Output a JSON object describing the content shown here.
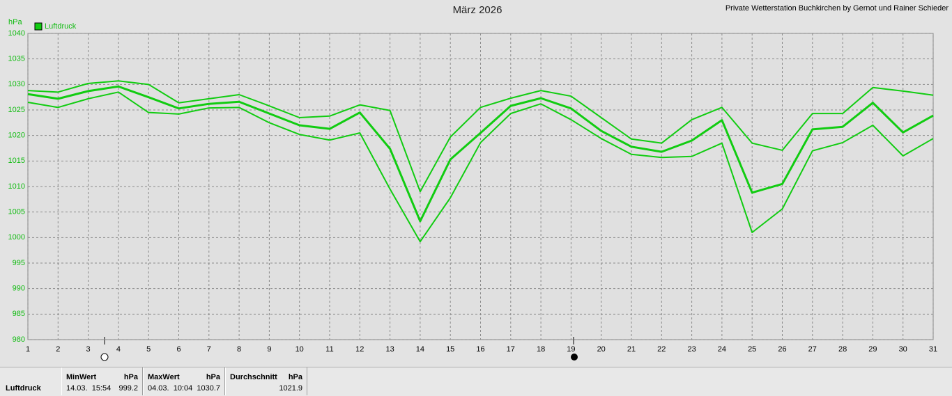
{
  "chart_data": {
    "type": "line",
    "title": "März 2026",
    "subtitle": "Private Wetterstation Buchkirchen by Gernot und Rainer Schieder",
    "y_label": "hPa",
    "x": [
      1,
      2,
      3,
      4,
      5,
      6,
      7,
      8,
      9,
      10,
      11,
      12,
      13,
      14,
      15,
      16,
      17,
      18,
      19,
      20,
      21,
      22,
      23,
      24,
      25,
      26,
      27,
      28,
      29,
      30,
      31
    ],
    "xlim": [
      1,
      31
    ],
    "xticks": [
      1,
      2,
      3,
      4,
      5,
      6,
      7,
      8,
      9,
      10,
      11,
      12,
      13,
      14,
      15,
      16,
      17,
      18,
      19,
      20,
      21,
      22,
      23,
      24,
      25,
      26,
      27,
      28,
      29,
      30,
      31
    ],
    "ylim": [
      980,
      1040
    ],
    "yticks": [
      980,
      985,
      990,
      995,
      1000,
      1005,
      1010,
      1015,
      1020,
      1025,
      1030,
      1035,
      1040
    ],
    "grid": true,
    "legend": "top-left",
    "series": [
      {
        "name": "Luftdruck",
        "color": "#11cc11",
        "width": 3,
        "values": [
          1028.1,
          1027.2,
          1028.7,
          1029.6,
          1027.5,
          1025.3,
          1026.2,
          1026.6,
          1024.3,
          1022.0,
          1021.3,
          1024.5,
          1017.4,
          1003.2,
          1015.3,
          1020.5,
          1025.8,
          1027.3,
          1025.3,
          1020.9,
          1017.8,
          1016.8,
          1019.0,
          1023.0,
          1008.8,
          1010.5,
          1021.2,
          1021.7,
          1026.4,
          1020.6,
          1023.9
        ]
      },
      {
        "color": "#11cc11",
        "width": 2,
        "values": [
          1028.8,
          1028.5,
          1030.2,
          1030.7,
          1030.0,
          1026.4,
          1027.2,
          1028.0,
          1025.8,
          1023.5,
          1023.8,
          1026.0,
          1024.9,
          1009.0,
          1019.7,
          1025.5,
          1027.3,
          1028.8,
          1027.7,
          1023.5,
          1019.3,
          1018.5,
          1023.1,
          1025.5,
          1018.5,
          1017.1,
          1024.3,
          1024.3,
          1029.4,
          1028.7,
          1027.9
        ]
      },
      {
        "color": "#11cc11",
        "width": 2,
        "values": [
          1026.5,
          1025.5,
          1027.2,
          1028.5,
          1024.5,
          1024.2,
          1025.4,
          1025.5,
          1022.5,
          1020.2,
          1019.1,
          1020.5,
          1009.5,
          999.2,
          1007.8,
          1018.6,
          1024.3,
          1026.2,
          1023.1,
          1019.4,
          1016.3,
          1015.7,
          1015.9,
          1018.5,
          1001.0,
          1005.6,
          1017.0,
          1018.6,
          1022.0,
          1016.0,
          1019.4
        ]
      }
    ]
  },
  "stats": {
    "label": "Luftdruck",
    "columns": [
      {
        "header": "MinWert",
        "unit": "hPa",
        "time": "14.03.  15:54",
        "value": "999.2"
      },
      {
        "header": "MaxWert",
        "unit": "hPa",
        "time": "04.03.  10:04",
        "value": "1030.7"
      },
      {
        "header": "Durchschnitt",
        "unit": "hPa",
        "value": "1021.9"
      }
    ]
  }
}
